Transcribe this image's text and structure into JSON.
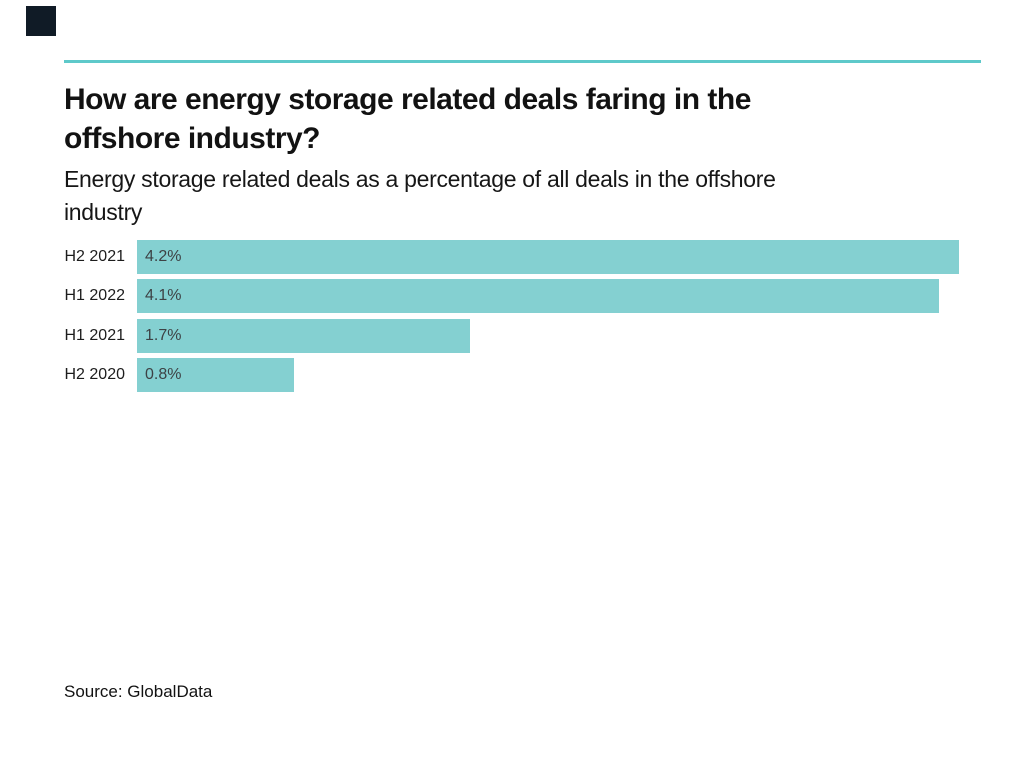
{
  "logo": {
    "name": "brand-logo-square",
    "color": "#101b26"
  },
  "header": {
    "divider_color": "#5ec9ca",
    "title_lines": [
      "How are energy storage related deals faring in the",
      "offshore industry?"
    ],
    "subtitle_lines": [
      "Energy storage related deals as a percentage of all deals in the offshore",
      "industry"
    ]
  },
  "chart_data": {
    "type": "bar",
    "orientation": "horizontal",
    "title": "How are energy storage related deals faring in the offshore industry?",
    "subtitle": "Energy storage related deals as a percentage of all deals in the offshore industry",
    "categories": [
      "H2 2021",
      "H1 2022",
      "H1 2021",
      "H2 2020"
    ],
    "values": [
      4.2,
      4.1,
      1.7,
      0.8
    ],
    "value_labels": [
      "4.2%",
      "4.1%",
      "1.7%",
      "0.8%"
    ],
    "unit": "%",
    "xlim": [
      0,
      4.3
    ],
    "grid": false,
    "legend": "none",
    "bar_color": "#84d0d1",
    "value_label_color": "#3d4245",
    "category_label_color": "#1d1d1d"
  },
  "footer": {
    "source_text": "Source: GlobalData"
  }
}
